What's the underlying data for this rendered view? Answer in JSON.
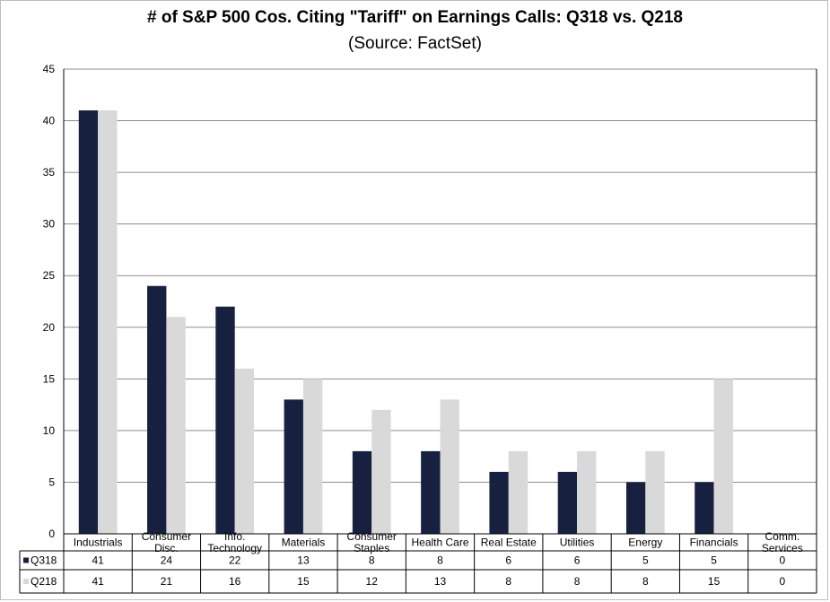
{
  "chart_data": {
    "type": "bar",
    "title": "# of S&P 500 Cos. Citing \"Tariff\" on Earnings Calls: Q318 vs. Q218",
    "subtitle": "(Source: FactSet)",
    "categories": [
      [
        "Industrials"
      ],
      [
        "Consumer",
        "Disc."
      ],
      [
        "Info.",
        "Technology"
      ],
      [
        "Materials"
      ],
      [
        "Consumer",
        "Staples"
      ],
      [
        "Health Care"
      ],
      [
        "Real Estate"
      ],
      [
        "Utilities"
      ],
      [
        "Energy"
      ],
      [
        "Financials"
      ],
      [
        "Comm.",
        "Services"
      ]
    ],
    "series": [
      {
        "name": "Q318",
        "color": "#17203f",
        "values": [
          41,
          24,
          22,
          13,
          8,
          8,
          6,
          6,
          5,
          5,
          0
        ]
      },
      {
        "name": "Q218",
        "color": "#d9d9d9",
        "values": [
          41,
          21,
          16,
          15,
          12,
          13,
          8,
          8,
          8,
          15,
          0
        ]
      }
    ],
    "ylim": [
      0,
      45
    ],
    "yticks": [
      0,
      5,
      10,
      15,
      20,
      25,
      30,
      35,
      40,
      45
    ],
    "grid": true,
    "legend": "data-table-left",
    "data_table": true
  }
}
